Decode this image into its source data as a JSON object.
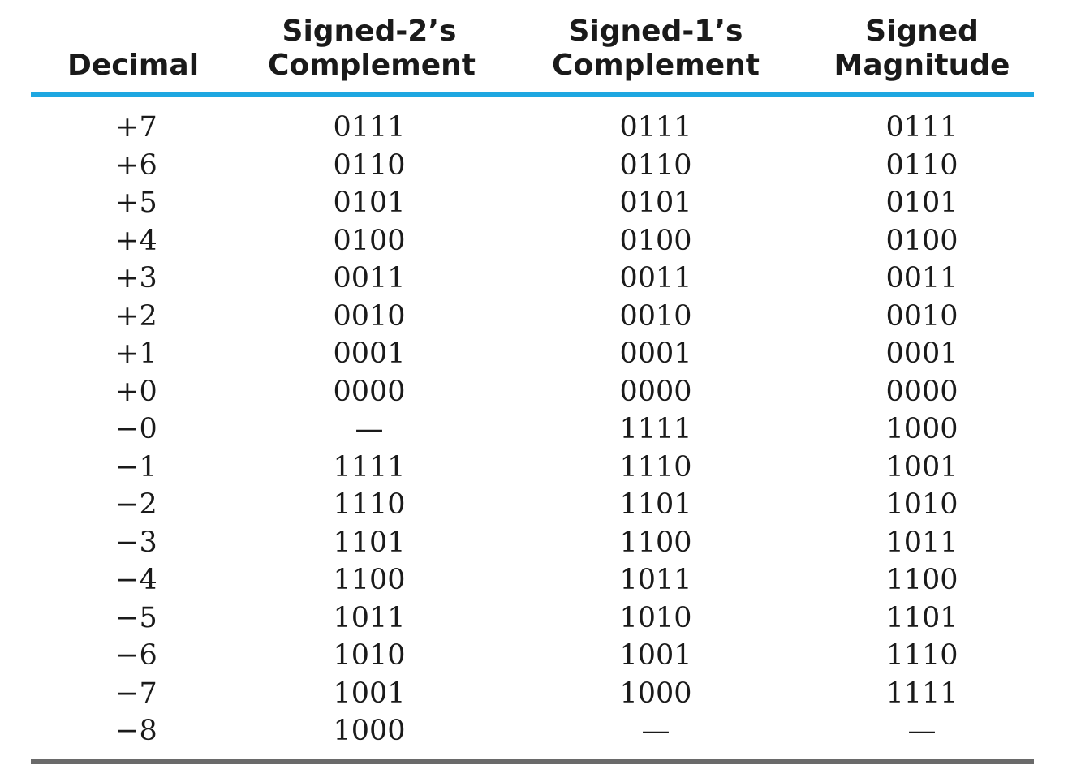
{
  "table": {
    "headers": [
      {
        "line1": "",
        "line2": "Decimal"
      },
      {
        "line1": "Signed-2’s",
        "line2": "Complement"
      },
      {
        "line1": "Signed-1’s",
        "line2": "Complement"
      },
      {
        "line1": "Signed",
        "line2": "Magnitude"
      }
    ],
    "rows": [
      [
        "+7",
        "0111",
        "0111",
        "0111"
      ],
      [
        "+6",
        "0110",
        "0110",
        "0110"
      ],
      [
        "+5",
        "0101",
        "0101",
        "0101"
      ],
      [
        "+4",
        "0100",
        "0100",
        "0100"
      ],
      [
        "+3",
        "0011",
        "0011",
        "0011"
      ],
      [
        "+2",
        "0010",
        "0010",
        "0010"
      ],
      [
        "+1",
        "0001",
        "0001",
        "0001"
      ],
      [
        "+0",
        "0000",
        "0000",
        "0000"
      ],
      [
        "−0",
        "—",
        "1111",
        "1000"
      ],
      [
        "−1",
        "1111",
        "1110",
        "1001"
      ],
      [
        "−2",
        "1110",
        "1101",
        "1010"
      ],
      [
        "−3",
        "1101",
        "1100",
        "1011"
      ],
      [
        "−4",
        "1100",
        "1011",
        "1100"
      ],
      [
        "−5",
        "1011",
        "1010",
        "1101"
      ],
      [
        "−6",
        "1010",
        "1001",
        "1110"
      ],
      [
        "−7",
        "1001",
        "1000",
        "1111"
      ],
      [
        "−8",
        "1000",
        "—",
        "—"
      ]
    ]
  },
  "colors": {
    "header_rule": "#1ea7e1",
    "footer_rule": "#6a6a6a",
    "text": "#1a1a1a"
  }
}
